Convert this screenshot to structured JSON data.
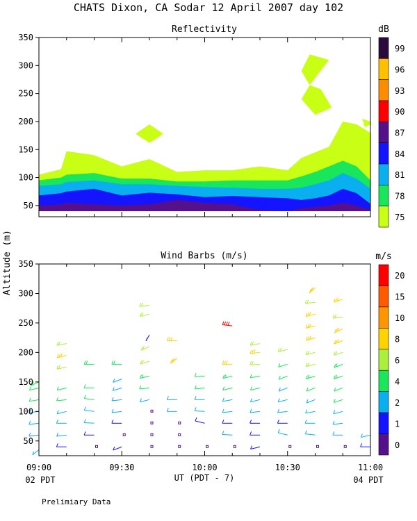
{
  "figure": {
    "title": "CHATS Dixon, CA  Sodar  12 April 2007  day 102",
    "ylabel": "Altitude (m)",
    "xlabel": "UT  (PDT - 7)",
    "x_start_note": "02 PDT",
    "x_end_note": "04 PDT",
    "footer": "Prelimiary Data",
    "x_ticks": [
      "09:00",
      "09:30",
      "10:00",
      "10:30",
      "11:00"
    ]
  },
  "chart_data": [
    {
      "type": "area",
      "title": "Reflectivity",
      "colorbar_unit": "dB",
      "colorbar_labels": [
        "99",
        "96",
        "93",
        "90",
        "87",
        "84",
        "81",
        "78",
        "75"
      ],
      "colorbar_colors": [
        "#2b0a3d",
        "#ffc000",
        "#ff8c00",
        "#ff0000",
        "#55108c",
        "#1414ff",
        "#0aaff0",
        "#19e65a",
        "#c8ff14"
      ],
      "y_ticks": [
        50,
        100,
        150,
        200,
        250,
        300,
        350
      ],
      "ylim": [
        30,
        350
      ],
      "xlim": [
        "09:00",
        "11:00"
      ],
      "times": [
        "09:00",
        "09:08",
        "09:10",
        "09:20",
        "09:30",
        "09:40",
        "09:50",
        "10:00",
        "10:10",
        "10:20",
        "10:30",
        "10:35",
        "10:40",
        "10:45",
        "10:50",
        "10:55",
        "11:00"
      ],
      "bands": [
        {
          "level": "75",
          "color": "#c8ff14",
          "tops": [
            105,
            115,
            147,
            140,
            120,
            133,
            110,
            113,
            113,
            120,
            113,
            135,
            145,
            155,
            200,
            195,
            180
          ]
        },
        {
          "level": "78",
          "color": "#19e65a",
          "tops": [
            95,
            100,
            105,
            108,
            98,
            98,
            93,
            93,
            95,
            95,
            95,
            102,
            110,
            120,
            130,
            120,
            95
          ]
        },
        {
          "level": "81",
          "color": "#0aaff0",
          "tops": [
            85,
            88,
            92,
            95,
            88,
            88,
            85,
            83,
            82,
            80,
            80,
            82,
            88,
            95,
            108,
            98,
            80
          ]
        },
        {
          "level": "84",
          "color": "#1414ff",
          "tops": [
            68,
            72,
            75,
            80,
            68,
            73,
            70,
            65,
            67,
            65,
            63,
            60,
            63,
            68,
            80,
            72,
            53
          ]
        },
        {
          "level": "87",
          "color": "#55108c",
          "tops": [
            50,
            52,
            55,
            52,
            50,
            52,
            60,
            55,
            52,
            42,
            40,
            45,
            48,
            50,
            55,
            50,
            42
          ]
        }
      ],
      "isolated_patches": [
        {
          "level": "75",
          "color": "#c8ff14",
          "points": [
            [
              "09:35",
              178
            ],
            [
              "09:40",
              195
            ],
            [
              "09:45",
              178
            ],
            [
              "09:40",
              162
            ]
          ]
        },
        {
          "level": "75",
          "color": "#c8ff14",
          "points": [
            [
              "10:35",
              290
            ],
            [
              "10:38",
              320
            ],
            [
              "10:45",
              310
            ],
            [
              "10:38",
              265
            ]
          ]
        },
        {
          "level": "75",
          "color": "#c8ff14",
          "points": [
            [
              "10:35",
              240
            ],
            [
              "10:38",
              265
            ],
            [
              "10:42",
              258
            ],
            [
              "10:46",
              225
            ],
            [
              "10:40",
              212
            ]
          ]
        },
        {
          "level": "75",
          "color": "#c8ff14",
          "points": [
            [
              "10:57",
              205
            ],
            [
              "11:00",
              200
            ],
            [
              "11:00",
              195
            ],
            [
              "10:58",
              190
            ]
          ]
        }
      ]
    },
    {
      "type": "scatter",
      "title": "Wind Barbs (m/s)",
      "colorbar_unit": "m/s",
      "colorbar_labels": [
        "20",
        "15",
        "10",
        "8",
        "6",
        "4",
        "2",
        "1",
        "0"
      ],
      "colorbar_colors": [
        "#ff0000",
        "#ff5a00",
        "#ff9600",
        "#ffd200",
        "#aaf03c",
        "#19e65a",
        "#0aaff0",
        "#1414ff",
        "#55108c"
      ],
      "y_ticks": [
        50,
        100,
        150,
        200,
        250,
        300,
        350
      ],
      "ylim": [
        25,
        350
      ],
      "xlim": [
        "09:00",
        "11:00"
      ],
      "columns": [
        {
          "time": "09:00",
          "barbs": [
            {
              "alt": 35,
              "dir": 220,
              "speed": 2
            },
            {
              "alt": 60,
              "dir": 260,
              "speed": 2
            },
            {
              "alt": 80,
              "dir": 260,
              "speed": 3
            },
            {
              "alt": 100,
              "dir": 260,
              "speed": 3
            },
            {
              "alt": 120,
              "dir": 255,
              "speed": 4
            },
            {
              "alt": 140,
              "dir": 250,
              "speed": 4
            },
            {
              "alt": 150,
              "dir": 235,
              "speed": 5
            }
          ]
        },
        {
          "time": "09:10",
          "barbs": [
            {
              "alt": 40,
              "dir": 270,
              "speed": 1
            },
            {
              "alt": 60,
              "dir": 260,
              "speed": 2
            },
            {
              "alt": 80,
              "dir": 270,
              "speed": 3
            },
            {
              "alt": 100,
              "dir": 250,
              "speed": 3
            },
            {
              "alt": 120,
              "dir": 260,
              "speed": 4
            },
            {
              "alt": 140,
              "dir": 250,
              "speed": 4
            },
            {
              "alt": 175,
              "dir": 255,
              "speed": 6
            },
            {
              "alt": 195,
              "dir": 250,
              "speed": 8
            },
            {
              "alt": 215,
              "dir": 255,
              "speed": 6
            }
          ]
        },
        {
          "time": "09:20",
          "barbs": [
            {
              "alt": 40,
              "dir": 0,
              "speed": 0
            },
            {
              "alt": 60,
              "dir": 270,
              "speed": 1
            },
            {
              "alt": 80,
              "dir": 275,
              "speed": 3
            },
            {
              "alt": 100,
              "dir": 280,
              "speed": 3
            },
            {
              "alt": 120,
              "dir": 280,
              "speed": 4
            },
            {
              "alt": 140,
              "dir": 270,
              "speed": 4
            },
            {
              "alt": 180,
              "dir": 270,
              "speed": 5
            }
          ]
        },
        {
          "time": "09:30",
          "barbs": [
            {
              "alt": 40,
              "dir": 240,
              "speed": 1
            },
            {
              "alt": 60,
              "dir": 0,
              "speed": 0
            },
            {
              "alt": 80,
              "dir": 270,
              "speed": 1
            },
            {
              "alt": 100,
              "dir": 260,
              "speed": 3
            },
            {
              "alt": 120,
              "dir": 260,
              "speed": 3
            },
            {
              "alt": 140,
              "dir": 245,
              "speed": 3
            },
            {
              "alt": 155,
              "dir": 240,
              "speed": 3
            },
            {
              "alt": 180,
              "dir": 270,
              "speed": 5
            }
          ]
        },
        {
          "time": "09:40",
          "barbs": [
            {
              "alt": 40,
              "dir": 0,
              "speed": 0
            },
            {
              "alt": 60,
              "dir": 0,
              "speed": 0
            },
            {
              "alt": 80,
              "dir": 0,
              "speed": 0
            },
            {
              "alt": 100,
              "dir": 0,
              "speed": 0
            },
            {
              "alt": 120,
              "dir": 250,
              "speed": 2
            },
            {
              "alt": 140,
              "dir": 260,
              "speed": 4
            },
            {
              "alt": 160,
              "dir": 250,
              "speed": 5
            },
            {
              "alt": 185,
              "dir": 245,
              "speed": 6
            },
            {
              "alt": 210,
              "dir": 235,
              "speed": 6
            },
            {
              "alt": 230,
              "dir": 200,
              "speed": 1
            },
            {
              "alt": 265,
              "dir": 250,
              "speed": 6
            },
            {
              "alt": 280,
              "dir": 260,
              "speed": 6
            }
          ]
        },
        {
          "time": "09:50",
          "barbs": [
            {
              "alt": 40,
              "dir": 0,
              "speed": 0
            },
            {
              "alt": 60,
              "dir": 0,
              "speed": 0
            },
            {
              "alt": 80,
              "dir": 0,
              "speed": 0
            },
            {
              "alt": 100,
              "dir": 270,
              "speed": 2
            },
            {
              "alt": 120,
              "dir": 270,
              "speed": 3
            },
            {
              "alt": 190,
              "dir": 220,
              "speed": 8
            },
            {
              "alt": 220,
              "dir": 270,
              "speed": 8
            }
          ]
        },
        {
          "time": "10:00",
          "barbs": [
            {
              "alt": 40,
              "dir": 0,
              "speed": 0
            },
            {
              "alt": 80,
              "dir": 290,
              "speed": 1
            },
            {
              "alt": 100,
              "dir": 275,
              "speed": 2
            },
            {
              "alt": 120,
              "dir": 270,
              "speed": 3
            },
            {
              "alt": 140,
              "dir": 260,
              "speed": 4
            },
            {
              "alt": 160,
              "dir": 265,
              "speed": 4
            }
          ]
        },
        {
          "time": "10:10",
          "barbs": [
            {
              "alt": 40,
              "dir": 0,
              "speed": 0
            },
            {
              "alt": 60,
              "dir": 275,
              "speed": 2
            },
            {
              "alt": 80,
              "dir": 270,
              "speed": 1
            },
            {
              "alt": 100,
              "dir": 260,
              "speed": 2
            },
            {
              "alt": 120,
              "dir": 255,
              "speed": 3
            },
            {
              "alt": 140,
              "dir": 250,
              "speed": 4
            },
            {
              "alt": 160,
              "dir": 250,
              "speed": 5
            },
            {
              "alt": 180,
              "dir": 270,
              "speed": 8
            },
            {
              "alt": 245,
              "dir": 280,
              "speed": 20
            }
          ]
        },
        {
          "time": "10:20",
          "barbs": [
            {
              "alt": 40,
              "dir": 250,
              "speed": 1
            },
            {
              "alt": 60,
              "dir": 270,
              "speed": 1
            },
            {
              "alt": 80,
              "dir": 270,
              "speed": 1
            },
            {
              "alt": 100,
              "dir": 260,
              "speed": 2
            },
            {
              "alt": 120,
              "dir": 250,
              "speed": 3
            },
            {
              "alt": 140,
              "dir": 250,
              "speed": 4
            },
            {
              "alt": 160,
              "dir": 255,
              "speed": 4
            },
            {
              "alt": 180,
              "dir": 265,
              "speed": 6
            },
            {
              "alt": 200,
              "dir": 260,
              "speed": 8
            },
            {
              "alt": 215,
              "dir": 255,
              "speed": 6
            }
          ]
        },
        {
          "time": "10:30",
          "barbs": [
            {
              "alt": 40,
              "dir": 0,
              "speed": 0
            },
            {
              "alt": 60,
              "dir": 290,
              "speed": 2
            },
            {
              "alt": 80,
              "dir": 270,
              "speed": 1
            },
            {
              "alt": 100,
              "dir": 260,
              "speed": 2
            },
            {
              "alt": 120,
              "dir": 250,
              "speed": 3
            },
            {
              "alt": 140,
              "dir": 240,
              "speed": 3
            },
            {
              "alt": 160,
              "dir": 240,
              "speed": 4
            },
            {
              "alt": 180,
              "dir": 245,
              "speed": 4
            },
            {
              "alt": 205,
              "dir": 250,
              "speed": 6
            }
          ]
        },
        {
          "time": "10:40",
          "barbs": [
            {
              "alt": 40,
              "dir": 0,
              "speed": 0
            },
            {
              "alt": 60,
              "dir": 280,
              "speed": 2
            },
            {
              "alt": 80,
              "dir": 270,
              "speed": 2
            },
            {
              "alt": 100,
              "dir": 255,
              "speed": 3
            },
            {
              "alt": 120,
              "dir": 240,
              "speed": 3
            },
            {
              "alt": 140,
              "dir": 240,
              "speed": 4
            },
            {
              "alt": 160,
              "dir": 245,
              "speed": 5
            },
            {
              "alt": 180,
              "dir": 250,
              "speed": 6
            },
            {
              "alt": 200,
              "dir": 250,
              "speed": 6
            },
            {
              "alt": 225,
              "dir": 245,
              "speed": 8
            },
            {
              "alt": 245,
              "dir": 250,
              "speed": 8
            },
            {
              "alt": 265,
              "dir": 250,
              "speed": 8
            },
            {
              "alt": 285,
              "dir": 260,
              "speed": 6
            },
            {
              "alt": 310,
              "dir": 215,
              "speed": 8
            }
          ]
        },
        {
          "time": "10:50",
          "barbs": [
            {
              "alt": 40,
              "dir": 0,
              "speed": 0
            },
            {
              "alt": 60,
              "dir": 270,
              "speed": 2
            },
            {
              "alt": 80,
              "dir": 260,
              "speed": 2
            },
            {
              "alt": 100,
              "dir": 250,
              "speed": 3
            },
            {
              "alt": 120,
              "dir": 245,
              "speed": 4
            },
            {
              "alt": 140,
              "dir": 240,
              "speed": 4
            },
            {
              "alt": 160,
              "dir": 245,
              "speed": 5
            },
            {
              "alt": 180,
              "dir": 240,
              "speed": 5
            },
            {
              "alt": 200,
              "dir": 245,
              "speed": 6
            },
            {
              "alt": 220,
              "dir": 240,
              "speed": 8
            },
            {
              "alt": 240,
              "dir": 235,
              "speed": 8
            },
            {
              "alt": 260,
              "dir": 260,
              "speed": 6
            },
            {
              "alt": 290,
              "dir": 245,
              "speed": 8
            }
          ]
        },
        {
          "time": "11:00",
          "barbs": [
            {
              "alt": 40,
              "dir": 270,
              "speed": 1
            },
            {
              "alt": 60,
              "dir": 250,
              "speed": 2
            }
          ]
        }
      ]
    }
  ]
}
